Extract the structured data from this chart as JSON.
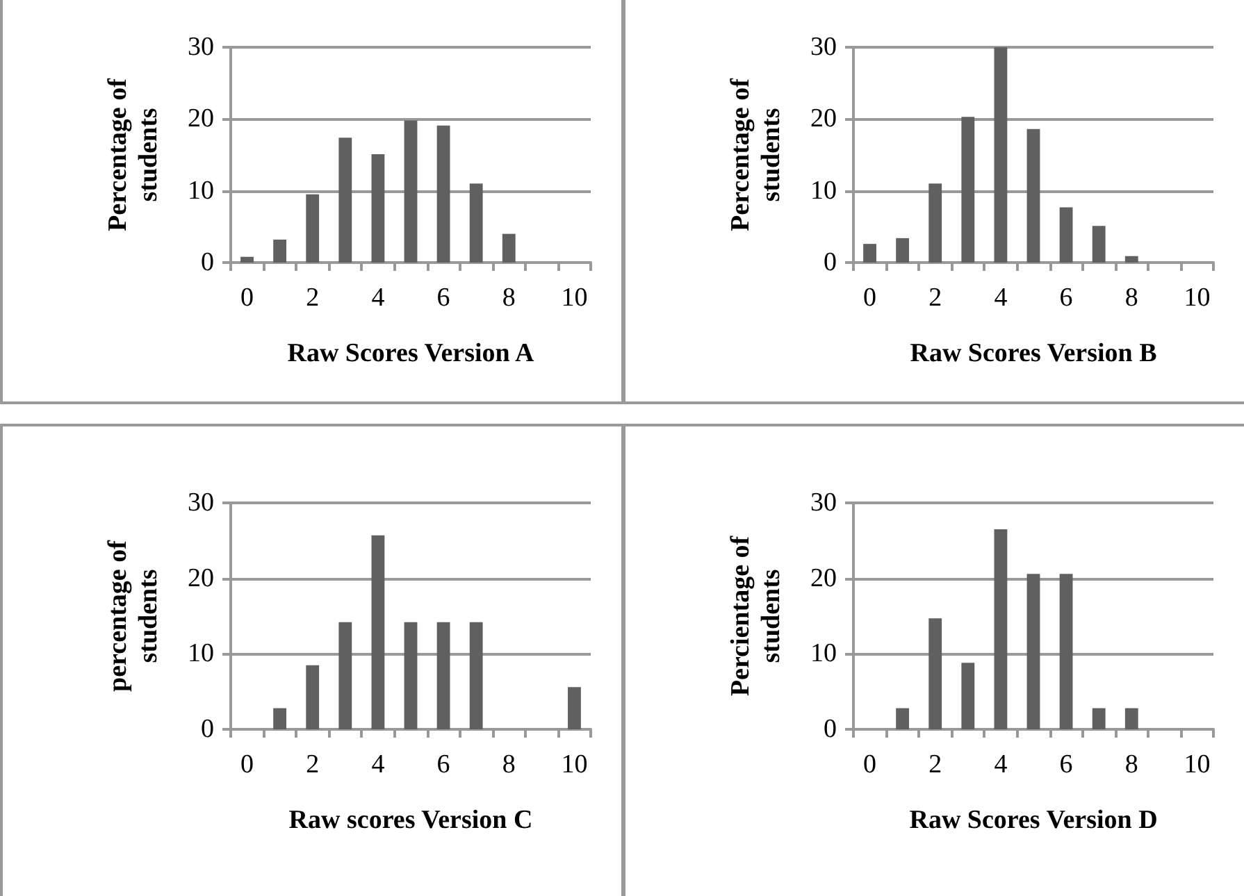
{
  "chart_data": [
    {
      "type": "bar",
      "xlabel": "Raw Scores Version A",
      "ylabel": "Percentage of students",
      "categories": [
        "0",
        null,
        "2",
        null,
        "4",
        null,
        "6",
        null,
        "8",
        null,
        "10"
      ],
      "values": [
        0.8,
        3.2,
        9.5,
        17.4,
        15.1,
        19.8,
        19.1,
        11.0,
        4.0,
        0,
        0
      ],
      "color": "#606060",
      "ylim": [
        0,
        30
      ],
      "yticks": [
        0,
        10,
        20,
        30
      ],
      "grid": "y"
    },
    {
      "type": "bar",
      "xlabel": "Raw Scores Version B",
      "ylabel": "Percentage of students",
      "categories": [
        "0",
        null,
        "2",
        null,
        "4",
        null,
        "6",
        null,
        "8",
        null,
        "10"
      ],
      "values": [
        2.6,
        3.4,
        11.0,
        20.3,
        30.0,
        18.6,
        7.7,
        5.1,
        0.9,
        0,
        0
      ],
      "color": "#606060",
      "ylim": [
        0,
        30
      ],
      "yticks": [
        0,
        10,
        20,
        30
      ],
      "grid": "y"
    },
    {
      "type": "bar",
      "xlabel": "Raw scores Version C",
      "ylabel": "percentage of students",
      "categories": [
        "0",
        null,
        "2",
        null,
        "4",
        null,
        "6",
        null,
        "8",
        null,
        "10"
      ],
      "values": [
        0,
        2.8,
        8.5,
        14.2,
        25.7,
        14.2,
        14.2,
        14.2,
        0,
        0,
        5.6
      ],
      "color": "#606060",
      "ylim": [
        0,
        30
      ],
      "yticks": [
        0,
        10,
        20,
        30
      ],
      "grid": "y"
    },
    {
      "type": "bar",
      "xlabel": "Raw Scores Version D",
      "ylabel": "Percientage of students",
      "categories": [
        "0",
        null,
        "2",
        null,
        "4",
        null,
        "6",
        null,
        "8",
        null,
        "10"
      ],
      "values": [
        0,
        2.8,
        14.7,
        8.8,
        26.5,
        20.6,
        20.6,
        2.8,
        2.8,
        0,
        0
      ],
      "color": "#606060",
      "ylim": [
        0,
        30
      ],
      "yticks": [
        0,
        10,
        20,
        30
      ],
      "grid": "y"
    }
  ]
}
